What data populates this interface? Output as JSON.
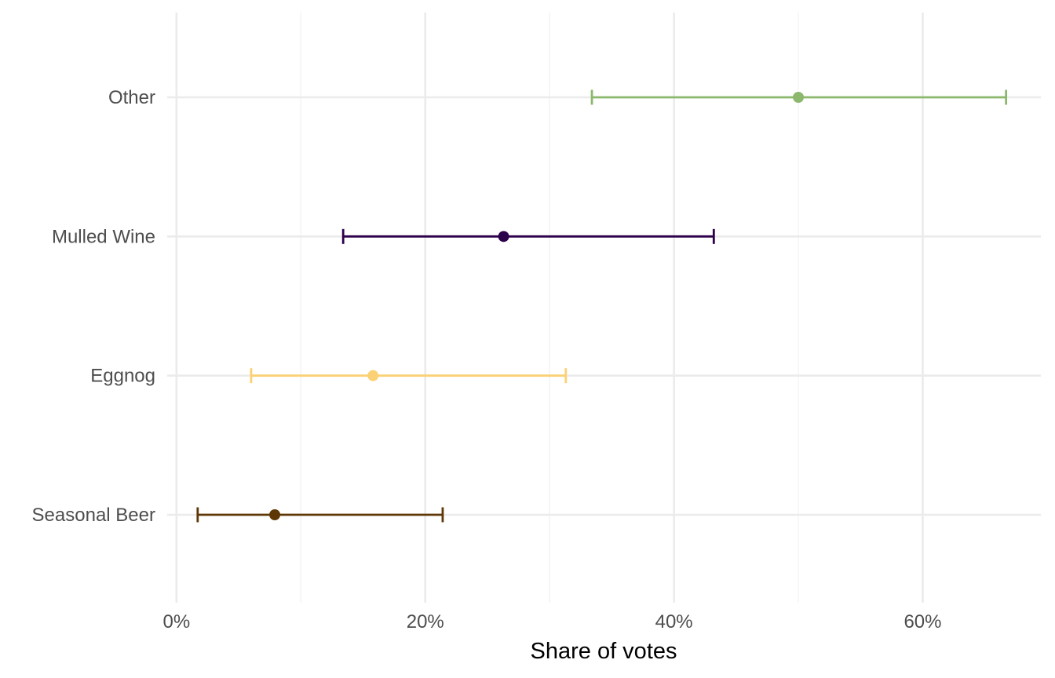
{
  "chart_data": {
    "type": "errorbar",
    "title": "",
    "xlabel": "Share of votes",
    "ylabel": "",
    "xlim": [
      -0.0075,
      0.695
    ],
    "x_ticks": [
      0,
      0.2,
      0.4,
      0.6
    ],
    "x_tick_labels": [
      "0%",
      "20%",
      "40%",
      "60%"
    ],
    "x_minor_ticks": [
      0.1,
      0.3,
      0.5
    ],
    "grid": true,
    "legend": "none",
    "categories": [
      "Seasonal Beer",
      "Eggnog",
      "Mulled Wine",
      "Other"
    ],
    "points": [
      {
        "label": "Seasonal Beer",
        "estimate": 0.079,
        "low": 0.017,
        "high": 0.214,
        "color": "#5e3706"
      },
      {
        "label": "Eggnog",
        "estimate": 0.158,
        "low": 0.06,
        "high": 0.313,
        "color": "#fbd175"
      },
      {
        "label": "Mulled Wine",
        "estimate": 0.263,
        "low": 0.134,
        "high": 0.432,
        "color": "#2d004b"
      },
      {
        "label": "Other",
        "estimate": 0.5,
        "low": 0.334,
        "high": 0.667,
        "color": "#8cb86e"
      }
    ]
  }
}
